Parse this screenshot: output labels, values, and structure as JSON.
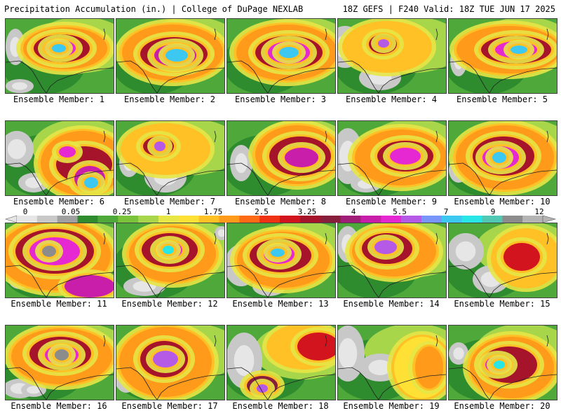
{
  "header": {
    "left_title": "Precipitation Accumulation (in.) | College of DuPage NEXLAB",
    "right_title": "18Z GEFS | F240 Valid: 18Z TUE JUN 17 2025"
  },
  "colorbar": {
    "tick_labels": [
      "0",
      "0.05",
      "0.25",
      "1",
      "1.75",
      "2.5",
      "3.25",
      "4",
      "5.5",
      "7",
      "9",
      "12"
    ],
    "colors": [
      "#e6e6e6",
      "#c8c8c8",
      "#a0a0a0",
      "#2e8b2e",
      "#4ea83a",
      "#7cc33c",
      "#a8d64a",
      "#e6e646",
      "#ffe135",
      "#ffc125",
      "#ff9a1a",
      "#ff6a14",
      "#f03214",
      "#d2141e",
      "#a5142a",
      "#871e3c",
      "#a01e78",
      "#c81eaa",
      "#e628d2",
      "#b45ae6",
      "#7896fa",
      "#3cc8f0",
      "#28e6e6",
      "#50c8b4",
      "#8c8c8c",
      "#b4b4b4"
    ]
  },
  "panels": [
    {
      "label": "Ensemble Member: 1"
    },
    {
      "label": "Ensemble Member: 2"
    },
    {
      "label": "Ensemble Member: 3"
    },
    {
      "label": "Ensemble Member: 4"
    },
    {
      "label": "Ensemble Member: 5"
    },
    {
      "label": "Ensemble Member: 6"
    },
    {
      "label": "Ensemble Member: 7"
    },
    {
      "label": "Ensemble Member: 8"
    },
    {
      "label": "Ensemble Member: 9"
    },
    {
      "label": "Ensemble Member: 10"
    },
    {
      "label": "Ensemble Member: 11"
    },
    {
      "label": "Ensemble Member: 12"
    },
    {
      "label": "Ensemble Member: 13"
    },
    {
      "label": "Ensemble Member: 14"
    },
    {
      "label": "Ensemble Member: 15"
    },
    {
      "label": "Ensemble Member: 16"
    },
    {
      "label": "Ensemble Member: 17"
    },
    {
      "label": "Ensemble Member: 18"
    },
    {
      "label": "Ensemble Member: 19"
    },
    {
      "label": "Ensemble Member: 20"
    }
  ]
}
